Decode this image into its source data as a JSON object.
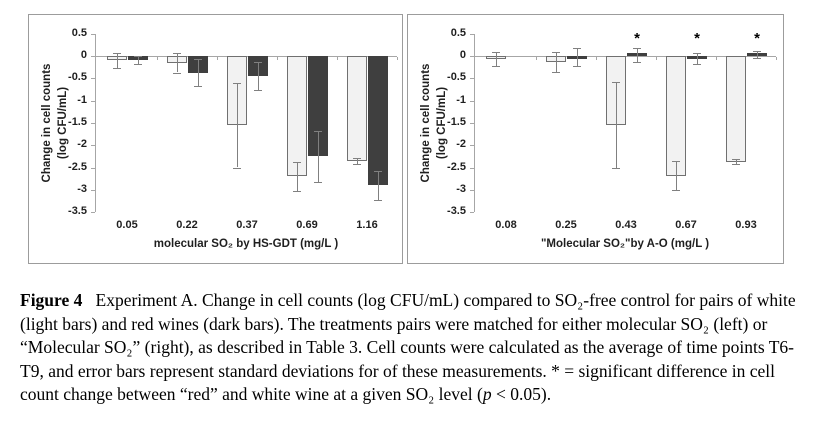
{
  "figure": {
    "caption_segments": [
      {
        "text": "Figure 4",
        "bold": true
      },
      {
        "text": "  Experiment A. Change in cell counts (log CFU/mL) compared to SO₂-free control for pairs of white (light bars) and red wines (dark bars). The treatments pairs were matched for either molecular SO₂ (left) or “Molecular SO₂” (right), as described in Table 3. Cell counts were calculated as the average of time points T6-T9, and error bars represent standard deviations for of these measurements. * = significant difference in cell count change between “red” and white wine at a given SO₂ level (",
        "bold": false
      },
      {
        "text": "p",
        "italic": true
      },
      {
        "text": " < 0.05).",
        "bold": false
      }
    ]
  },
  "colors": {
    "white_wine_bar_fill": "#f2f2f2",
    "white_wine_bar_border": "#707070",
    "red_wine_bar_fill": "#3f3f3f",
    "axis_line": "#a6a6a6",
    "error_bar": "#808080",
    "chart_text": "#1f1f1f",
    "sig_marker_color": "#000000"
  },
  "chart_data": [
    {
      "type": "bar",
      "title": "",
      "xlabel": "molecular SO₂ by HS-GDT (mg/L )",
      "ylabel": "Change in cell counts\n(log CFU/mL)",
      "categories": [
        "0.05",
        "0.22",
        "0.37",
        "0.69",
        "1.16"
      ],
      "ylim": [
        -3.5,
        0.5
      ],
      "yticks": [
        0.5,
        0,
        -0.5,
        -1,
        -1.5,
        -2,
        -2.5,
        -3,
        -3.5
      ],
      "grid": false,
      "legend_position": "none",
      "series": [
        {
          "name": "white wine (light bars)",
          "values": [
            -0.1,
            -0.15,
            -1.55,
            -2.7,
            -2.35
          ],
          "errors": [
            0.17,
            0.22,
            0.95,
            0.32,
            0.07
          ]
        },
        {
          "name": "red wine (dark bars)",
          "values": [
            -0.09,
            -0.37,
            -0.45,
            -2.25,
            -2.9
          ],
          "errors": [
            0.09,
            0.3,
            0.32,
            0.57,
            0.33
          ]
        }
      ],
      "significance": [
        false,
        false,
        false,
        false,
        false
      ],
      "sig_marker": "*"
    },
    {
      "type": "bar",
      "title": "",
      "xlabel": "\"Molecular SO₂\"by A-O (mg/L )",
      "ylabel": "Change in cell counts\n(log CFU/mL)",
      "categories": [
        "0.08",
        "0.25",
        "0.43",
        "0.67",
        "0.93"
      ],
      "ylim": [
        -3.5,
        0.5
      ],
      "yticks": [
        0.5,
        0,
        -0.5,
        -1,
        -1.5,
        -2,
        -2.5,
        -3,
        -3.5
      ],
      "grid": false,
      "legend_position": "none",
      "series": [
        {
          "name": "white wine (light bars)",
          "values": [
            -0.07,
            -0.13,
            -1.55,
            -2.68,
            -2.37
          ],
          "errors": [
            0.15,
            0.22,
            0.97,
            0.33,
            0.06
          ]
        },
        {
          "name": "red wine (dark bars)",
          "values": [
            null,
            -0.02,
            0.02,
            -0.05,
            0.04
          ],
          "errors": [
            null,
            0.2,
            0.15,
            0.12,
            0.08
          ]
        }
      ],
      "significance": [
        false,
        false,
        true,
        true,
        true
      ],
      "sig_marker": "*"
    }
  ]
}
